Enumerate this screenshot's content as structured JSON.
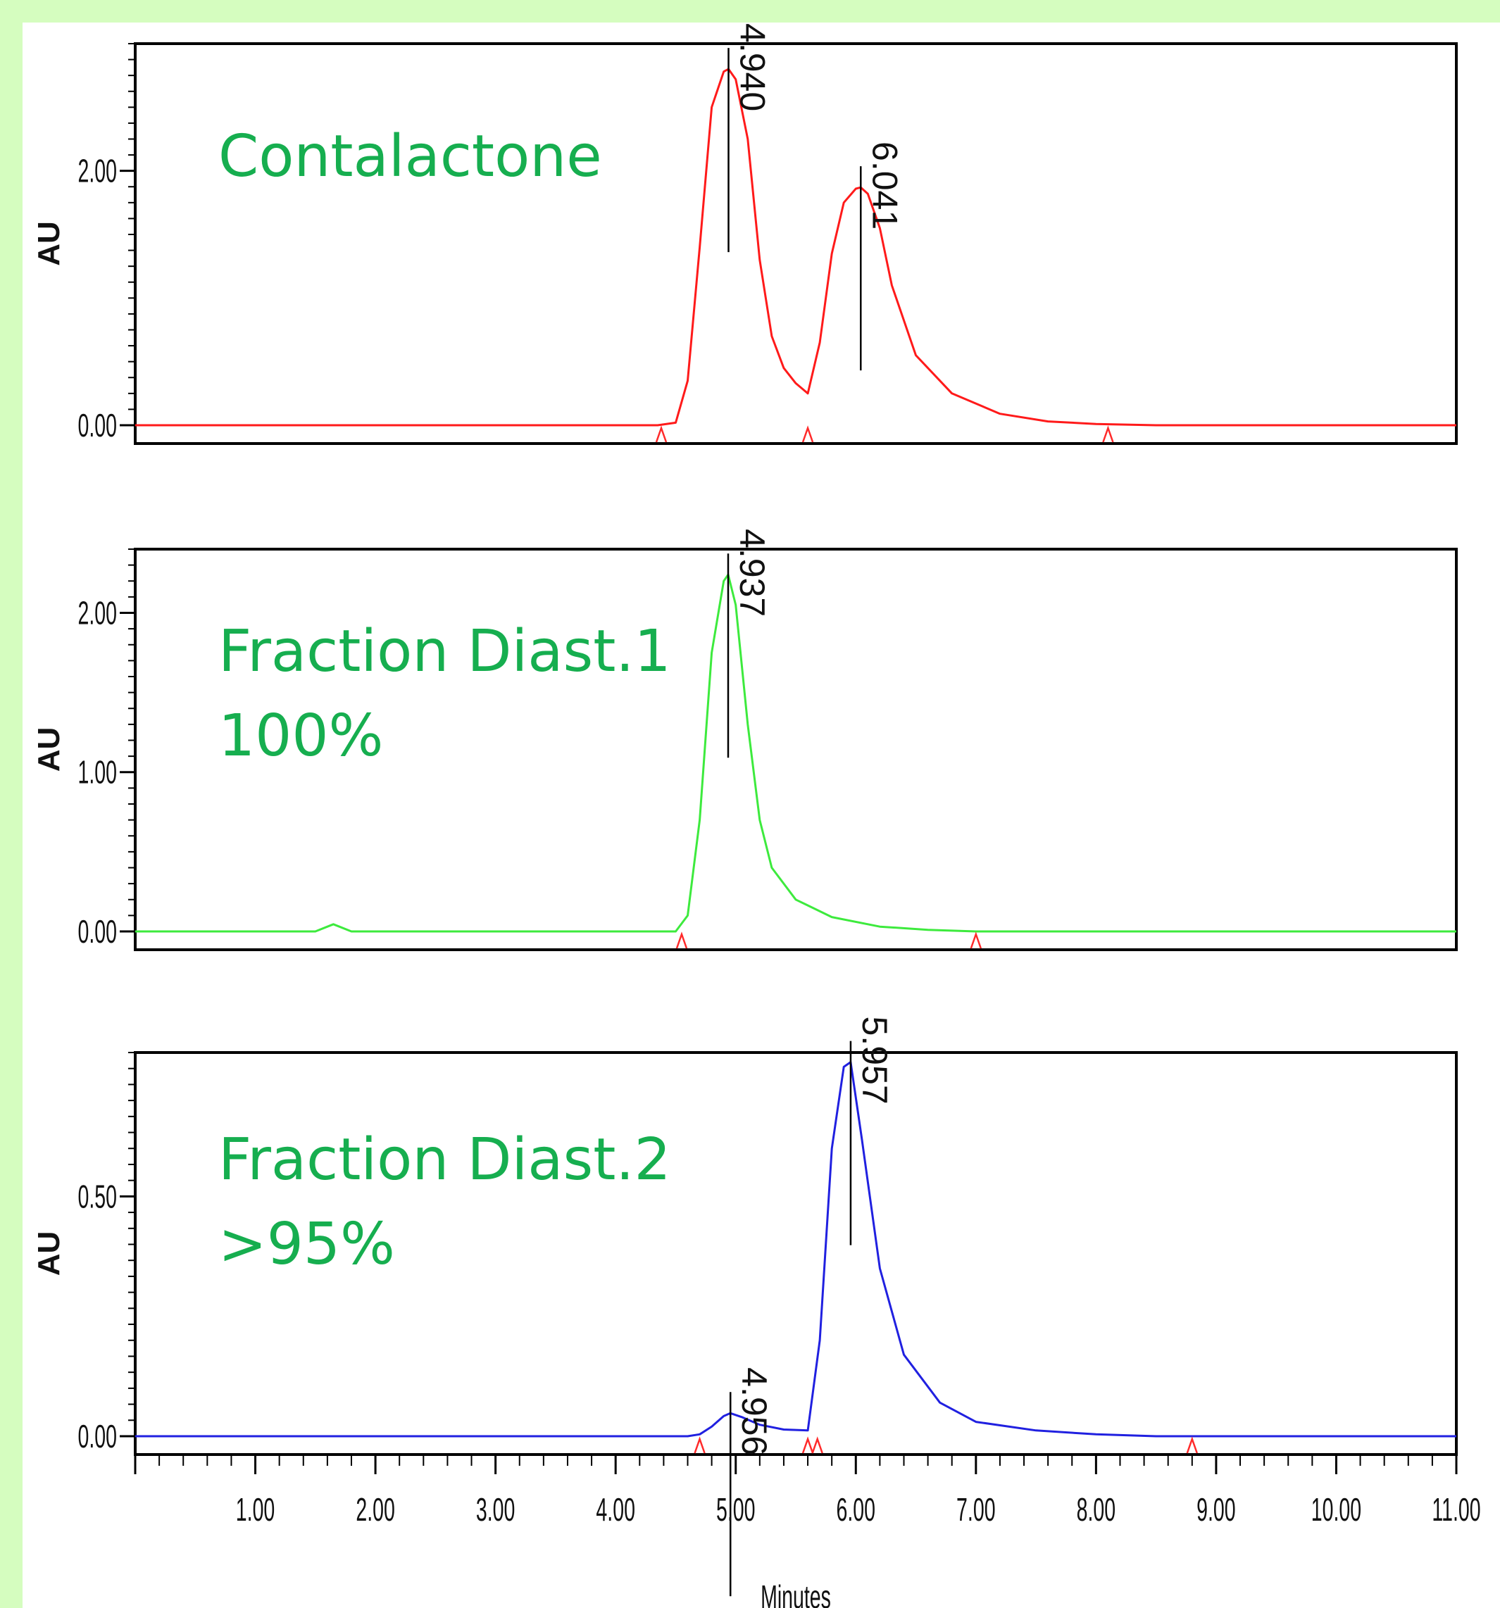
{
  "colors": {
    "background": "#d5fdbf",
    "annotation": "#16ae4f"
  },
  "chart_data": [
    {
      "type": "line",
      "color": "#ff1a1a",
      "annotation": [
        "Contalactone"
      ],
      "ylabel": "AU",
      "ylim": [
        0,
        3.0
      ],
      "xlim": [
        0,
        11.0
      ],
      "yticks": [
        0.0,
        2.0
      ],
      "ytick_labels": [
        "0.00",
        "2.00"
      ],
      "peaks": [
        {
          "rt": 4.94,
          "height": 2.8,
          "label": "4.940"
        },
        {
          "rt": 6.041,
          "height": 1.87,
          "label": "6.041"
        }
      ],
      "markers": [
        4.38,
        5.6,
        8.1
      ],
      "series": [
        {
          "x": [
            0,
            4.35,
            4.5,
            4.6,
            4.7,
            4.8,
            4.9,
            4.94,
            5.0,
            5.1,
            5.2,
            5.3,
            5.4,
            5.5,
            5.6,
            5.7,
            5.8,
            5.9,
            6.0,
            6.041,
            6.1,
            6.2,
            6.3,
            6.5,
            6.8,
            7.2,
            7.6,
            8.0,
            8.5,
            11.0
          ],
          "y": [
            0,
            0,
            0.02,
            0.35,
            1.4,
            2.5,
            2.78,
            2.8,
            2.72,
            2.25,
            1.3,
            0.7,
            0.45,
            0.33,
            0.25,
            0.65,
            1.35,
            1.75,
            1.86,
            1.87,
            1.82,
            1.55,
            1.1,
            0.55,
            0.25,
            0.09,
            0.03,
            0.01,
            0,
            0
          ]
        }
      ]
    },
    {
      "type": "line",
      "color": "#3dea3d",
      "annotation": [
        "Fraction Diast.1",
        "100%"
      ],
      "ylabel": "AU",
      "ylim": [
        0,
        2.4
      ],
      "xlim": [
        0,
        11.0
      ],
      "yticks": [
        0.0,
        1.0,
        2.0
      ],
      "ytick_labels": [
        "0.00",
        "1.00",
        "2.00"
      ],
      "peaks": [
        {
          "rt": 4.937,
          "height": 2.24,
          "label": "4.937"
        }
      ],
      "markers": [
        4.55,
        7.0
      ],
      "series": [
        {
          "x": [
            0,
            1.5,
            1.6,
            1.65,
            1.7,
            1.8,
            4.5,
            4.6,
            4.7,
            4.8,
            4.9,
            4.937,
            5.0,
            5.1,
            5.2,
            5.3,
            5.5,
            5.8,
            6.2,
            6.6,
            7.0,
            11.0
          ],
          "y": [
            0,
            0,
            0.03,
            0.045,
            0.03,
            0,
            0,
            0.1,
            0.7,
            1.75,
            2.2,
            2.24,
            2.05,
            1.3,
            0.7,
            0.4,
            0.2,
            0.09,
            0.03,
            0.01,
            0,
            0
          ]
        }
      ]
    },
    {
      "type": "line",
      "color": "#2020e0",
      "annotation": [
        "Fraction Diast.2",
        ">95%"
      ],
      "ylabel": "AU",
      "xlabel": "Minutes",
      "ylim": [
        0,
        0.8
      ],
      "xlim": [
        0,
        11.0
      ],
      "yticks": [
        0.0,
        0.5
      ],
      "ytick_labels": [
        "0.00",
        "0.50"
      ],
      "xticks": [
        1,
        2,
        3,
        4,
        5,
        6,
        7,
        8,
        9,
        10,
        11
      ],
      "xtick_labels": [
        "1.00",
        "2.00",
        "3.00",
        "4.00",
        "5.00",
        "6.00",
        "7.00",
        "8.00",
        "9.00",
        "10.00",
        "11.00"
      ],
      "peaks": [
        {
          "rt": 4.956,
          "height": 0.048,
          "label": "4.956"
        },
        {
          "rt": 5.957,
          "height": 0.78,
          "label": "5.957"
        }
      ],
      "markers": [
        4.7,
        5.6,
        5.68,
        8.8
      ],
      "series": [
        {
          "x": [
            0,
            4.6,
            4.7,
            4.8,
            4.9,
            4.956,
            5.05,
            5.2,
            5.4,
            5.6,
            5.7,
            5.8,
            5.9,
            5.957,
            6.05,
            6.2,
            6.4,
            6.7,
            7.0,
            7.5,
            8.0,
            8.5,
            11.0
          ],
          "y": [
            0,
            0,
            0.004,
            0.02,
            0.042,
            0.048,
            0.04,
            0.024,
            0.014,
            0.012,
            0.2,
            0.6,
            0.77,
            0.78,
            0.62,
            0.35,
            0.17,
            0.07,
            0.03,
            0.012,
            0.004,
            0,
            0
          ]
        }
      ]
    }
  ]
}
